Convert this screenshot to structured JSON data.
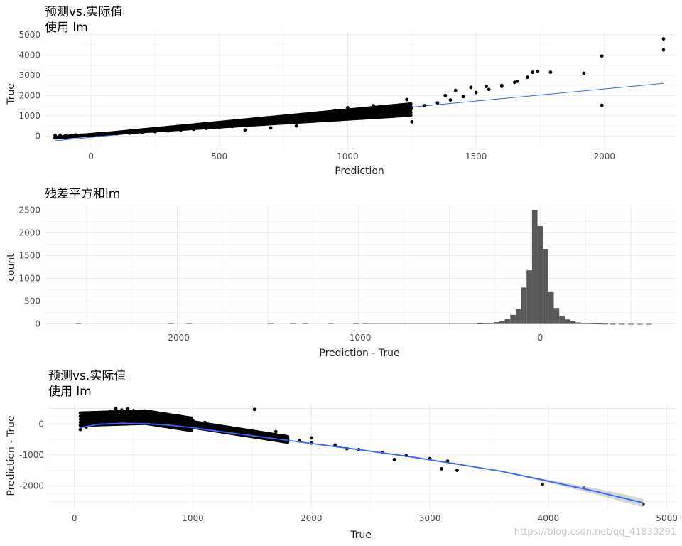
{
  "chart_data": [
    {
      "type": "scatter",
      "title": "预测vs.实际值",
      "subtitle": "使用 lm",
      "xlabel": "Prediction",
      "ylabel": "True",
      "xlim": [
        -180,
        2280
      ],
      "ylim": [
        -550,
        5100
      ],
      "xticks": [
        0,
        500,
        1000,
        1500,
        2000
      ],
      "yticks": [
        0,
        1000,
        2000,
        3000,
        4000,
        5000
      ],
      "ytick_labels": [
        "0",
        "1000",
        "2000",
        "3000",
        "4000",
        "5000"
      ],
      "grid": true,
      "point_color": "#000000",
      "fit_line": {
        "color": "#3366ff",
        "x": [
          -140,
          2230
        ],
        "y": [
          -230,
          2600
        ]
      },
      "points": [
        [
          -140,
          40
        ],
        [
          -120,
          50
        ],
        [
          -100,
          30
        ],
        [
          -80,
          40
        ],
        [
          -60,
          60
        ],
        [
          -40,
          40
        ],
        [
          0,
          70
        ],
        [
          50,
          90
        ],
        [
          100,
          110
        ],
        [
          150,
          140
        ],
        [
          200,
          170
        ],
        [
          250,
          210
        ],
        [
          300,
          250
        ],
        [
          350,
          290
        ],
        [
          400,
          330
        ],
        [
          450,
          380
        ],
        [
          500,
          430
        ],
        [
          550,
          470
        ],
        [
          600,
          520
        ],
        [
          650,
          570
        ],
        [
          700,
          620
        ],
        [
          750,
          680
        ],
        [
          800,
          740
        ],
        [
          850,
          790
        ],
        [
          900,
          860
        ],
        [
          950,
          920
        ],
        [
          1000,
          990
        ],
        [
          1050,
          1060
        ],
        [
          1100,
          1150
        ],
        [
          1150,
          1230
        ],
        [
          1200,
          1320
        ],
        [
          1250,
          1400
        ],
        [
          1300,
          1500
        ],
        [
          1350,
          1640
        ],
        [
          1400,
          1780
        ],
        [
          1450,
          1950
        ],
        [
          1500,
          2150
        ],
        [
          1550,
          2300
        ],
        [
          1600,
          2450
        ],
        [
          1650,
          2650
        ],
        [
          1700,
          2900
        ],
        [
          1720,
          3150
        ],
        [
          1740,
          3200
        ],
        [
          1790,
          3150
        ],
        [
          1920,
          3100
        ],
        [
          1990,
          3950
        ],
        [
          1990,
          1520
        ],
        [
          1250,
          700
        ],
        [
          1100,
          1500
        ],
        [
          1000,
          1400
        ],
        [
          950,
          1250
        ],
        [
          900,
          1050
        ],
        [
          800,
          500
        ],
        [
          700,
          400
        ],
        [
          600,
          300
        ],
        [
          1380,
          2000
        ],
        [
          1420,
          2250
        ],
        [
          1480,
          2400
        ],
        [
          1540,
          2450
        ],
        [
          1600,
          2500
        ],
        [
          1660,
          2700
        ],
        [
          2230,
          4800
        ],
        [
          2230,
          4250
        ],
        [
          1230,
          1800
        ]
      ]
    },
    {
      "type": "bar",
      "title": "残差平方和lm",
      "xlabel": "Prediction - True",
      "ylabel": "count",
      "xlim": [
        -2730,
        750
      ],
      "ylim": [
        -100,
        2620
      ],
      "xticks": [
        -2000,
        -1000,
        0
      ],
      "xtick_labels": [
        "-2000",
        "-1000",
        "0"
      ],
      "yticks": [
        0,
        500,
        1000,
        1500,
        2000,
        2500
      ],
      "bar_color": "#595959",
      "bins": [
        [
          -330,
          10
        ],
        [
          -300,
          15
        ],
        [
          -270,
          25
        ],
        [
          -240,
          40
        ],
        [
          -210,
          60
        ],
        [
          -180,
          110
        ],
        [
          -150,
          200
        ],
        [
          -120,
          330
        ],
        [
          -90,
          800
        ],
        [
          -60,
          1180
        ],
        [
          -30,
          2500
        ],
        [
          0,
          2150
        ],
        [
          30,
          1650
        ],
        [
          60,
          700
        ],
        [
          90,
          350
        ],
        [
          120,
          180
        ],
        [
          150,
          100
        ],
        [
          180,
          60
        ],
        [
          210,
          35
        ],
        [
          240,
          25
        ],
        [
          270,
          15
        ],
        [
          300,
          10
        ],
        [
          330,
          8
        ],
        [
          360,
          5
        ],
        [
          400,
          3
        ],
        [
          450,
          2
        ],
        [
          500,
          2
        ],
        [
          550,
          1
        ],
        [
          600,
          1
        ]
      ]
    },
    {
      "type": "scatter",
      "title": "预测vs.实际值",
      "subtitle": "使用 lm",
      "xlabel": "True",
      "ylabel": "Prediction - True",
      "xlim": [
        -220,
        5080
      ],
      "ylim": [
        -2750,
        650
      ],
      "xticks": [
        0,
        1000,
        2000,
        3000,
        4000,
        5000
      ],
      "yticks": [
        -2000,
        -1000,
        0
      ],
      "ytick_labels": [
        "-2000",
        "-1000",
        "0"
      ],
      "grid": true,
      "point_color": "#000000",
      "smooth_line": {
        "color": "#3366ff",
        "x": [
          50,
          200,
          400,
          600,
          800,
          1000,
          1200,
          1400,
          1600,
          1800,
          2000,
          2400,
          2800,
          3200,
          3600,
          4000,
          4400,
          4800
        ],
        "y": [
          -120,
          -10,
          20,
          10,
          -40,
          -120,
          -230,
          -330,
          -430,
          -530,
          -630,
          -830,
          -1040,
          -1280,
          -1530,
          -1850,
          -2180,
          -2550
        ]
      },
      "points": [
        [
          50,
          -180
        ],
        [
          100,
          -100
        ],
        [
          150,
          100
        ],
        [
          200,
          200
        ],
        [
          250,
          350
        ],
        [
          300,
          400
        ],
        [
          350,
          500
        ],
        [
          400,
          450
        ],
        [
          450,
          480
        ],
        [
          500,
          430
        ],
        [
          550,
          400
        ],
        [
          600,
          380
        ],
        [
          650,
          350
        ],
        [
          700,
          300
        ],
        [
          750,
          330
        ],
        [
          800,
          280
        ],
        [
          850,
          250
        ],
        [
          900,
          200
        ],
        [
          950,
          180
        ],
        [
          1000,
          100
        ],
        [
          1100,
          50
        ],
        [
          1200,
          -80
        ],
        [
          1300,
          -150
        ],
        [
          1400,
          -250
        ],
        [
          1500,
          -300
        ],
        [
          1600,
          -400
        ],
        [
          1700,
          -450
        ],
        [
          1800,
          -520
        ],
        [
          1900,
          -550
        ],
        [
          2000,
          -620
        ],
        [
          2200,
          -680
        ],
        [
          2400,
          -830
        ],
        [
          2600,
          -930
        ],
        [
          2800,
          -1020
        ],
        [
          3000,
          -1120
        ],
        [
          3150,
          -1200
        ],
        [
          3230,
          -1500
        ],
        [
          3950,
          -1950
        ],
        [
          4300,
          -2050
        ],
        [
          4800,
          -2600
        ],
        [
          1520,
          470
        ],
        [
          2000,
          -450
        ],
        [
          1700,
          -250
        ],
        [
          2300,
          -800
        ],
        [
          2700,
          -1150
        ],
        [
          3100,
          -1450
        ]
      ]
    }
  ],
  "watermark": "https://blog.csdn.net/qq_41830291"
}
